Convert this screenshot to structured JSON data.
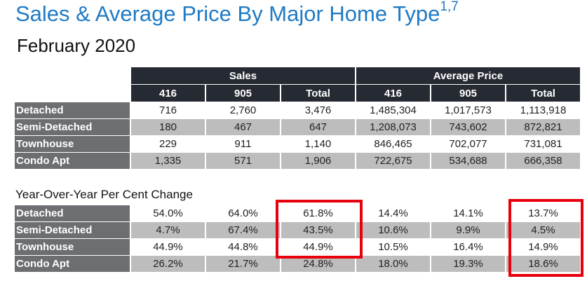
{
  "title": "Sales & Average Price By Major Home Type",
  "title_superscript": "1,7",
  "subtitle": "February 2020",
  "groups": [
    "Sales",
    "Average Price"
  ],
  "columns": [
    "416",
    "905",
    "Total",
    "416",
    "905",
    "Total"
  ],
  "rows": [
    {
      "label": "Detached",
      "values": [
        "716",
        "2,760",
        "3,476",
        "1,485,304",
        "1,017,573",
        "1,113,918"
      ]
    },
    {
      "label": "Semi-Detached",
      "values": [
        "180",
        "467",
        "647",
        "1,208,073",
        "743,602",
        "872,821"
      ]
    },
    {
      "label": "Townhouse",
      "values": [
        "229",
        "911",
        "1,140",
        "846,465",
        "702,077",
        "731,081"
      ]
    },
    {
      "label": "Condo Apt",
      "values": [
        "1,335",
        "571",
        "1,906",
        "722,675",
        "534,688",
        "666,358"
      ]
    }
  ],
  "yoy_title": "Year-Over-Year Per Cent Change",
  "yoy_rows": [
    {
      "label": "Detached",
      "values": [
        "54.0%",
        "64.0%",
        "61.8%",
        "14.4%",
        "14.1%",
        "13.7%"
      ]
    },
    {
      "label": "Semi-Detached",
      "values": [
        "4.7%",
        "67.4%",
        "43.5%",
        "10.6%",
        "9.9%",
        "4.5%"
      ]
    },
    {
      "label": "Townhouse",
      "values": [
        "44.9%",
        "44.8%",
        "44.9%",
        "10.5%",
        "16.4%",
        "14.9%"
      ]
    },
    {
      "label": "Condo Apt",
      "values": [
        "26.2%",
        "21.7%",
        "24.8%",
        "18.0%",
        "19.3%",
        "18.6%"
      ]
    }
  ],
  "highlight_color": "#e8000d"
}
